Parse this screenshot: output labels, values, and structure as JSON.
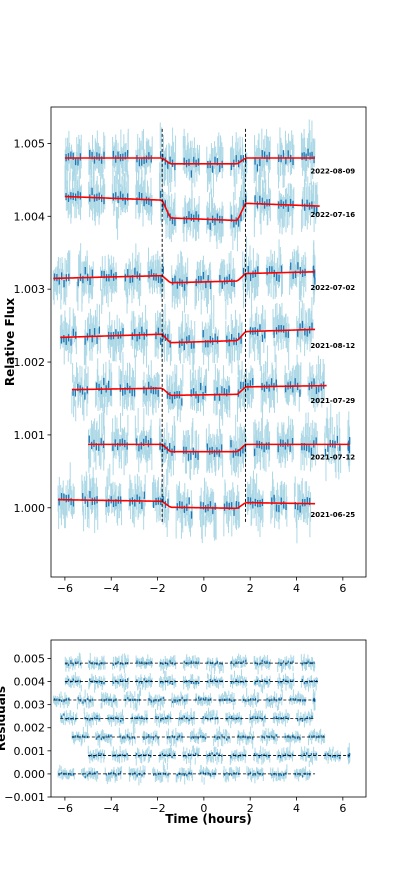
{
  "chart_data": [
    {
      "type": "scatter",
      "title": "",
      "xlabel": "",
      "ylabel": "Relative Flux",
      "xlim": [
        -6.6,
        7.0
      ],
      "ylim": [
        0.99905,
        1.0055
      ],
      "xticks": [
        -6,
        -4,
        -2,
        0,
        2,
        4,
        6
      ],
      "xtick_labels": [
        "−6",
        "−4",
        "−2",
        "0",
        "2",
        "4",
        "6"
      ],
      "yticks": [
        1.0,
        1.001,
        1.002,
        1.003,
        1.004,
        1.005
      ],
      "ytick_labels": [
        "1.000",
        "1.001",
        "1.002",
        "1.003",
        "1.004",
        "1.005"
      ],
      "transit_markers_x": [
        -1.8,
        1.8
      ],
      "colors": {
        "raw": "#add8e6",
        "binned": "#1f77b4",
        "model": "#ff0000",
        "marker": "#000000"
      },
      "series": [
        {
          "name": "2022-08-09",
          "offset": 1.0048,
          "x_start": -6.0,
          "x_end": 4.8,
          "depth": 8e-05,
          "slope": 0.0
        },
        {
          "name": "2022-07-16",
          "offset": 1.0042,
          "x_start": -6.0,
          "x_end": 5.0,
          "depth": 0.00024,
          "slope": -1.2e-05
        },
        {
          "name": "2022-07-02",
          "offset": 1.0032,
          "x_start": -6.5,
          "x_end": 4.8,
          "depth": 0.0001,
          "slope": 8e-06
        },
        {
          "name": "2021-08-12",
          "offset": 1.0024,
          "x_start": -6.2,
          "x_end": 4.8,
          "depth": 0.00012,
          "slope": 1e-05
        },
        {
          "name": "2021-07-29",
          "offset": 1.00165,
          "x_start": -5.7,
          "x_end": 5.3,
          "depth": 0.0001,
          "slope": 5e-06
        },
        {
          "name": "2021-07-12",
          "offset": 1.00087,
          "x_start": -5.0,
          "x_end": 6.3,
          "depth": 0.0001,
          "slope": 0.0
        },
        {
          "name": "2021-06-25",
          "offset": 1.00008,
          "x_start": -6.3,
          "x_end": 4.8,
          "depth": 8e-05,
          "slope": -5e-06
        }
      ]
    },
    {
      "type": "scatter",
      "title": "",
      "xlabel": "Time (hours)",
      "ylabel": "Residuals",
      "xlim": [
        -6.6,
        7.0
      ],
      "ylim": [
        -0.001,
        0.0058
      ],
      "xticks": [
        -6,
        -4,
        -2,
        0,
        2,
        4,
        6
      ],
      "xtick_labels": [
        "−6",
        "−4",
        "−2",
        "0",
        "2",
        "4",
        "6"
      ],
      "yticks": [
        -0.001,
        0.0,
        0.001,
        0.002,
        0.003,
        0.004,
        0.005
      ],
      "ytick_labels": [
        "−0.001",
        "0.000",
        "0.001",
        "0.002",
        "0.003",
        "0.004",
        "0.005"
      ],
      "colors": {
        "raw": "#add8e6",
        "binned": "#1f77b4",
        "zero_line": "#000000"
      },
      "series": [
        {
          "name": "2022-08-09",
          "offset": 0.0048,
          "x_start": -6.0,
          "x_end": 4.8
        },
        {
          "name": "2022-07-16",
          "offset": 0.004,
          "x_start": -6.0,
          "x_end": 5.0
        },
        {
          "name": "2022-07-02",
          "offset": 0.0032,
          "x_start": -6.5,
          "x_end": 4.8
        },
        {
          "name": "2021-08-12",
          "offset": 0.0024,
          "x_start": -6.2,
          "x_end": 4.8
        },
        {
          "name": "2021-07-29",
          "offset": 0.0016,
          "x_start": -5.7,
          "x_end": 5.3
        },
        {
          "name": "2021-07-12",
          "offset": 0.0008,
          "x_start": -5.0,
          "x_end": 6.3
        },
        {
          "name": "2021-06-25",
          "offset": 0.0,
          "x_start": -6.3,
          "x_end": 4.8
        }
      ]
    }
  ]
}
